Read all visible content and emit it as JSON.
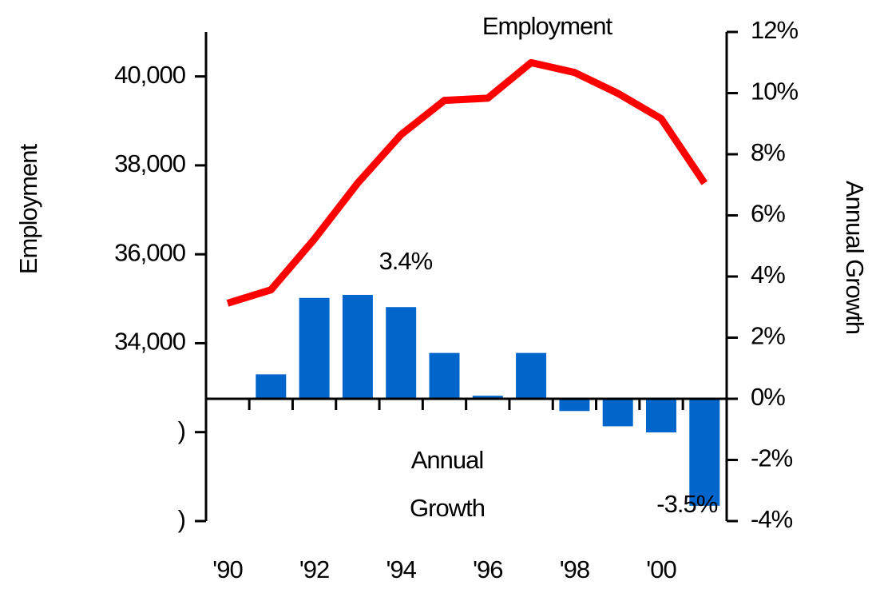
{
  "chart_data": {
    "type": "bar-line",
    "title": "Employment",
    "y_label": "Employment",
    "y2_label": "Annual Growth",
    "annotation": [
      "Annual",
      "Growth"
    ],
    "categories": [
      "'90",
      null,
      "'92",
      null,
      "'94",
      null,
      "'96",
      null,
      "'98",
      null,
      "'00",
      null
    ],
    "ylim": [
      30000,
      41000
    ],
    "yticks": [
      {
        "value": 30000,
        "label": ")"
      },
      {
        "value": 32000,
        "label": ")"
      },
      {
        "value": 34000,
        "label": "34,000"
      },
      {
        "value": 36000,
        "label": "36,000"
      },
      {
        "value": 38000,
        "label": "38,000"
      },
      {
        "value": 40000,
        "label": "40,000"
      }
    ],
    "y2lim": [
      -4,
      12
    ],
    "y2ticks": [
      {
        "value": -4,
        "label": "-4%"
      },
      {
        "value": -2,
        "label": "-2%"
      },
      {
        "value": 0,
        "label": "0%"
      },
      {
        "value": 2,
        "label": "2%"
      },
      {
        "value": 4,
        "label": "4%"
      },
      {
        "value": 6,
        "label": "6%"
      },
      {
        "value": 8,
        "label": "8%"
      },
      {
        "value": 10,
        "label": "10%"
      },
      {
        "value": 12,
        "label": "12%"
      }
    ],
    "series": [
      {
        "name": "Employment",
        "type": "line",
        "color": "#ff0000",
        "values": [
          34900,
          35200,
          36340,
          37600,
          38690,
          39460,
          39510,
          40310,
          40090,
          39620,
          39050,
          37600
        ]
      },
      {
        "name": "Annual Growth",
        "type": "bar",
        "axis": "y2",
        "color": "#0066cc",
        "values": [
          null,
          0.8,
          3.3,
          3.4,
          3.0,
          1.5,
          0.1,
          1.5,
          -0.4,
          -0.9,
          -1.1,
          -3.5
        ],
        "value_labels": [
          null,
          null,
          null,
          "3.4%",
          null,
          null,
          null,
          null,
          null,
          null,
          null,
          "-3.5%"
        ]
      }
    ]
  }
}
